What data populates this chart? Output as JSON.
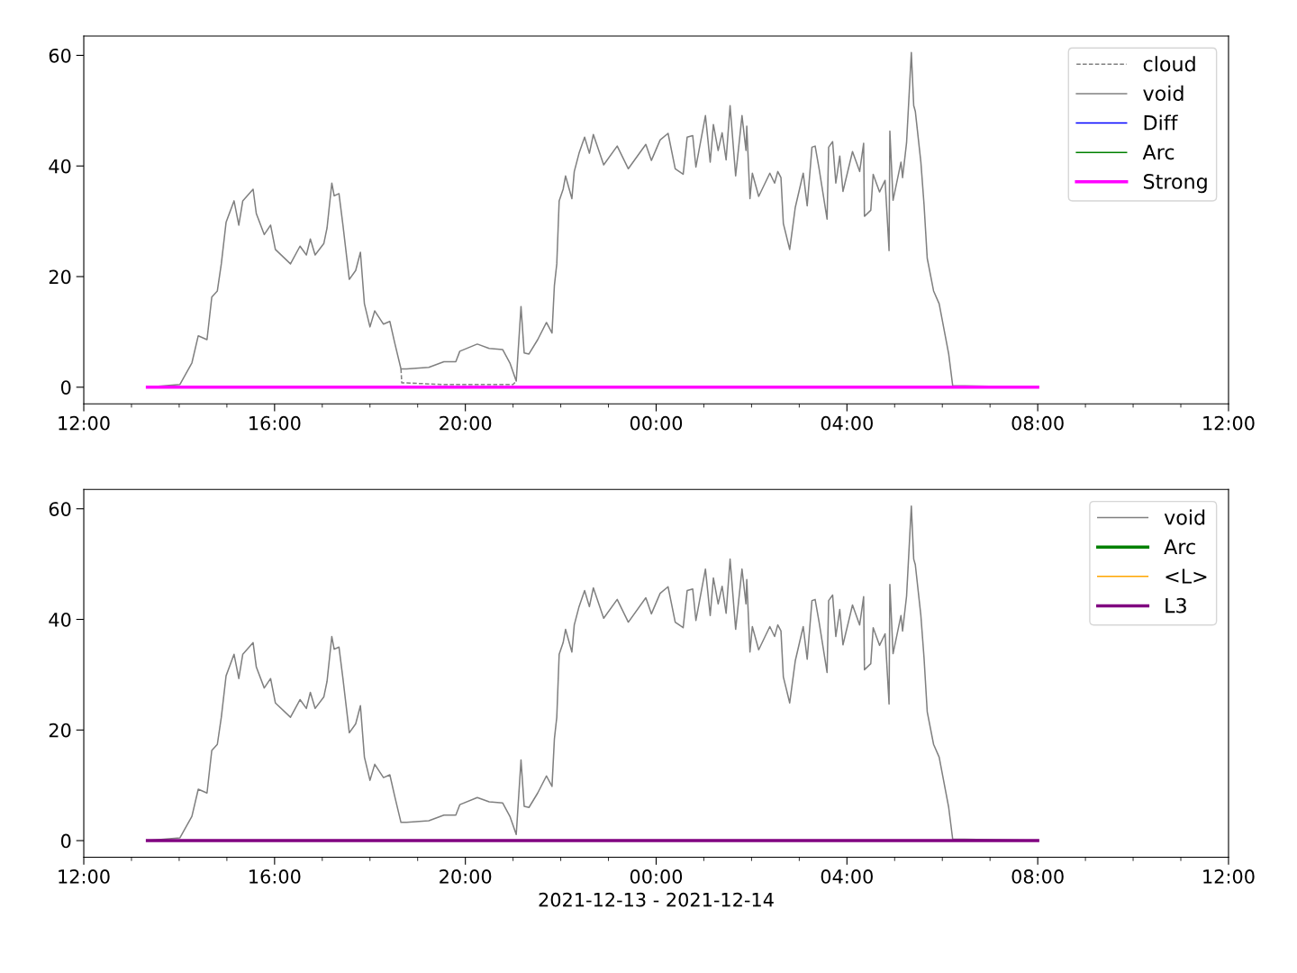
{
  "chart_data": [
    {
      "type": "line",
      "xlim": [
        "2021-12-13T12:00",
        "2021-12-14T12:00"
      ],
      "ylim": [
        -3,
        63.5
      ],
      "yticks": [
        0,
        20,
        40,
        60
      ],
      "xticks": [
        {
          "value": "2021-12-13T12:00",
          "label": "12:00"
        },
        {
          "value": "2021-12-13T16:00",
          "label": "16:00"
        },
        {
          "value": "2021-12-13T20:00",
          "label": "20:00"
        },
        {
          "value": "2021-12-14T00:00",
          "label": "00:00"
        },
        {
          "value": "2021-12-14T04:00",
          "label": "04:00"
        },
        {
          "value": "2021-12-14T08:00",
          "label": "08:00"
        },
        {
          "value": "2021-12-14T12:00",
          "label": "12:00"
        }
      ],
      "legend": "top right",
      "grid": false,
      "series": [
        {
          "name": "cloud",
          "color": "#808080",
          "line_style": "dashed",
          "x": [
            "2021-12-13T18:39",
            "2021-12-13T18:40",
            "2021-12-13T19:30",
            "2021-12-13T20:30",
            "2021-12-13T21:00",
            "2021-12-13T21:04"
          ],
          "values": [
            3.3,
            0.8,
            0.5,
            0.5,
            0.5,
            1.1
          ]
        },
        {
          "name": "void",
          "color": "#808080",
          "line_style": "solid",
          "x": [
            "2021-12-13T13:20",
            "2021-12-13T14:01",
            "2021-12-13T14:16",
            "2021-12-13T14:24",
            "2021-12-13T14:35",
            "2021-12-13T14:41",
            "2021-12-13T14:48",
            "2021-12-13T14:53",
            "2021-12-13T14:59",
            "2021-12-13T15:09",
            "2021-12-13T15:15",
            "2021-12-13T15:20",
            "2021-12-13T15:33",
            "2021-12-13T15:37",
            "2021-12-13T15:47",
            "2021-12-13T15:55",
            "2021-12-13T16:01",
            "2021-12-13T16:20",
            "2021-12-13T16:32",
            "2021-12-13T16:40",
            "2021-12-13T16:45",
            "2021-12-13T16:51",
            "2021-12-13T17:02",
            "2021-12-13T17:06",
            "2021-12-13T17:12",
            "2021-12-13T17:15",
            "2021-12-13T17:21",
            "2021-12-13T17:26",
            "2021-12-13T17:34",
            "2021-12-13T17:42",
            "2021-12-13T17:48",
            "2021-12-13T17:53",
            "2021-12-13T18:00",
            "2021-12-13T18:06",
            "2021-12-13T18:17",
            "2021-12-13T18:25",
            "2021-12-13T18:31",
            "2021-12-13T18:39",
            "2021-12-13T18:46",
            "2021-12-13T19:14",
            "2021-12-13T19:33",
            "2021-12-13T19:48",
            "2021-12-13T19:53",
            "2021-12-13T20:15",
            "2021-12-13T20:30",
            "2021-12-13T20:47",
            "2021-12-13T20:56",
            "2021-12-13T21:04",
            "2021-12-13T21:10",
            "2021-12-13T21:14",
            "2021-12-13T21:20",
            "2021-12-13T21:31",
            "2021-12-13T21:42",
            "2021-12-13T21:49",
            "2021-12-13T21:52",
            "2021-12-13T21:55",
            "2021-12-13T21:58",
            "2021-12-13T22:03",
            "2021-12-13T22:06",
            "2021-12-13T22:14",
            "2021-12-13T22:17",
            "2021-12-13T22:23",
            "2021-12-13T22:30",
            "2021-12-13T22:36",
            "2021-12-13T22:41",
            "2021-12-13T22:54",
            "2021-12-13T23:11",
            "2021-12-13T23:25",
            "2021-12-13T23:47",
            "2021-12-13T23:54",
            "2021-12-14T00:05",
            "2021-12-14T00:15",
            "2021-12-14T00:24",
            "2021-12-14T00:34",
            "2021-12-14T00:39",
            "2021-12-14T00:46",
            "2021-12-14T00:50",
            "2021-12-14T01:02",
            "2021-12-14T01:08",
            "2021-12-14T01:12",
            "2021-12-14T01:18",
            "2021-12-14T01:23",
            "2021-12-14T01:28",
            "2021-12-14T01:33",
            "2021-12-14T01:40",
            "2021-12-14T01:48",
            "2021-12-14T01:53",
            "2021-12-14T01:54",
            "2021-12-14T01:58",
            "2021-12-14T02:01",
            "2021-12-14T02:09",
            "2021-12-14T02:23",
            "2021-12-14T02:29",
            "2021-12-14T02:33",
            "2021-12-14T02:37",
            "2021-12-14T02:40",
            "2021-12-14T02:48",
            "2021-12-14T02:55",
            "2021-12-14T03:05",
            "2021-12-14T03:10",
            "2021-12-14T03:16",
            "2021-12-14T03:20",
            "2021-12-14T03:25",
            "2021-12-14T03:35",
            "2021-12-14T03:37",
            "2021-12-14T03:42",
            "2021-12-14T03:46",
            "2021-12-14T03:51",
            "2021-12-14T03:55",
            "2021-12-14T04:07",
            "2021-12-14T04:16",
            "2021-12-14T04:21",
            "2021-12-14T04:22",
            "2021-12-14T04:30",
            "2021-12-14T04:33",
            "2021-12-14T04:41",
            "2021-12-14T04:48",
            "2021-12-14T04:53",
            "2021-12-14T04:54",
            "2021-12-14T04:58",
            "2021-12-14T05:08",
            "2021-12-14T05:10",
            "2021-12-14T05:15",
            "2021-12-14T05:21",
            "2021-12-14T05:24",
            "2021-12-14T05:26",
            "2021-12-14T05:33",
            "2021-12-14T05:37",
            "2021-12-14T05:41",
            "2021-12-14T05:49",
            "2021-12-14T05:56",
            "2021-12-14T06:08",
            "2021-12-14T06:13",
            "2021-12-14T08:00"
          ],
          "values": [
            0,
            0.5,
            4.4,
            9.3,
            8.6,
            16.3,
            17.4,
            22.3,
            29.8,
            33.7,
            29.3,
            33.7,
            35.8,
            31.4,
            27.6,
            29.3,
            24.9,
            22.3,
            25.5,
            23.9,
            26.8,
            23.9,
            26.0,
            28.8,
            36.9,
            34.6,
            35.0,
            29.3,
            19.5,
            21.1,
            24.4,
            15.1,
            10.9,
            13.8,
            11.4,
            11.9,
            8.1,
            3.3,
            3.3,
            3.6,
            4.6,
            4.6,
            6.5,
            7.8,
            7.0,
            6.8,
            4.4,
            1.1,
            14.6,
            6.2,
            6.0,
            8.6,
            11.7,
            9.8,
            18.4,
            22.3,
            33.7,
            35.8,
            38.2,
            34.1,
            39.0,
            42.3,
            45.2,
            42.3,
            45.7,
            40.2,
            43.6,
            39.5,
            43.9,
            41.0,
            44.7,
            45.9,
            39.5,
            38.5,
            45.2,
            45.5,
            39.8,
            49.1,
            40.7,
            47.5,
            42.8,
            46.0,
            41.1,
            50.9,
            38.2,
            49.1,
            42.8,
            47.2,
            34.1,
            38.7,
            34.5,
            38.7,
            36.9,
            39.0,
            37.9,
            29.6,
            24.9,
            32.5,
            38.7,
            32.8,
            43.4,
            43.6,
            39.5,
            30.4,
            43.4,
            44.4,
            36.9,
            41.8,
            35.4,
            42.6,
            39.0,
            44.1,
            30.9,
            32.0,
            38.5,
            35.3,
            37.4,
            24.7,
            46.3,
            33.8,
            40.7,
            37.9,
            44.2,
            60.5,
            50.9,
            49.9,
            40.7,
            33.0,
            23.3,
            17.4,
            15.1,
            6.0,
            0.3,
            0
          ]
        },
        {
          "name": "Diff",
          "color": "#0000ff",
          "line_style": "solid"
        },
        {
          "name": "Arc",
          "color": "#008000",
          "line_style": "solid"
        },
        {
          "name": "Strong",
          "color": "#ff00ff",
          "line_style": "solid",
          "x": [
            "2021-12-13T13:20",
            "2021-12-14T08:00"
          ],
          "values": [
            0,
            0
          ]
        }
      ]
    },
    {
      "type": "line",
      "xlim": [
        "2021-12-13T12:00",
        "2021-12-14T12:00"
      ],
      "ylim": [
        -3,
        63.5
      ],
      "yticks": [
        0,
        20,
        40,
        60
      ],
      "xticks": [
        {
          "value": "2021-12-13T12:00",
          "label": "12:00"
        },
        {
          "value": "2021-12-13T16:00",
          "label": "16:00"
        },
        {
          "value": "2021-12-13T20:00",
          "label": "20:00"
        },
        {
          "value": "2021-12-14T00:00",
          "label": "00:00"
        },
        {
          "value": "2021-12-14T04:00",
          "label": "04:00"
        },
        {
          "value": "2021-12-14T08:00",
          "label": "08:00"
        },
        {
          "value": "2021-12-14T12:00",
          "label": "12:00"
        }
      ],
      "xlabel": "2021-12-13 - 2021-12-14",
      "legend": "top right",
      "grid": false,
      "series": [
        {
          "name": "void",
          "color": "#808080",
          "line_style": "solid",
          "x": [
            "2021-12-13T13:20",
            "2021-12-13T14:01",
            "2021-12-13T14:16",
            "2021-12-13T14:24",
            "2021-12-13T14:35",
            "2021-12-13T14:41",
            "2021-12-13T14:48",
            "2021-12-13T14:53",
            "2021-12-13T14:59",
            "2021-12-13T15:09",
            "2021-12-13T15:15",
            "2021-12-13T15:20",
            "2021-12-13T15:33",
            "2021-12-13T15:37",
            "2021-12-13T15:47",
            "2021-12-13T15:55",
            "2021-12-13T16:01",
            "2021-12-13T16:20",
            "2021-12-13T16:32",
            "2021-12-13T16:40",
            "2021-12-13T16:45",
            "2021-12-13T16:51",
            "2021-12-13T17:02",
            "2021-12-13T17:06",
            "2021-12-13T17:12",
            "2021-12-13T17:15",
            "2021-12-13T17:21",
            "2021-12-13T17:26",
            "2021-12-13T17:34",
            "2021-12-13T17:42",
            "2021-12-13T17:48",
            "2021-12-13T17:53",
            "2021-12-13T18:00",
            "2021-12-13T18:06",
            "2021-12-13T18:17",
            "2021-12-13T18:25",
            "2021-12-13T18:31",
            "2021-12-13T18:39",
            "2021-12-13T18:46",
            "2021-12-13T19:14",
            "2021-12-13T19:33",
            "2021-12-13T19:48",
            "2021-12-13T19:53",
            "2021-12-13T20:15",
            "2021-12-13T20:30",
            "2021-12-13T20:47",
            "2021-12-13T20:56",
            "2021-12-13T21:04",
            "2021-12-13T21:10",
            "2021-12-13T21:14",
            "2021-12-13T21:20",
            "2021-12-13T21:31",
            "2021-12-13T21:42",
            "2021-12-13T21:49",
            "2021-12-13T21:52",
            "2021-12-13T21:55",
            "2021-12-13T21:58",
            "2021-12-13T22:03",
            "2021-12-13T22:06",
            "2021-12-13T22:14",
            "2021-12-13T22:17",
            "2021-12-13T22:23",
            "2021-12-13T22:30",
            "2021-12-13T22:36",
            "2021-12-13T22:41",
            "2021-12-13T22:54",
            "2021-12-13T23:11",
            "2021-12-13T23:25",
            "2021-12-13T23:47",
            "2021-12-13T23:54",
            "2021-12-14T00:05",
            "2021-12-14T00:15",
            "2021-12-14T00:24",
            "2021-12-14T00:34",
            "2021-12-14T00:39",
            "2021-12-14T00:46",
            "2021-12-14T00:50",
            "2021-12-14T01:02",
            "2021-12-14T01:08",
            "2021-12-14T01:12",
            "2021-12-14T01:18",
            "2021-12-14T01:23",
            "2021-12-14T01:28",
            "2021-12-14T01:33",
            "2021-12-14T01:40",
            "2021-12-14T01:48",
            "2021-12-14T01:53",
            "2021-12-14T01:54",
            "2021-12-14T01:58",
            "2021-12-14T02:01",
            "2021-12-14T02:09",
            "2021-12-14T02:23",
            "2021-12-14T02:29",
            "2021-12-14T02:33",
            "2021-12-14T02:37",
            "2021-12-14T02:40",
            "2021-12-14T02:48",
            "2021-12-14T02:55",
            "2021-12-14T03:05",
            "2021-12-14T03:10",
            "2021-12-14T03:16",
            "2021-12-14T03:20",
            "2021-12-14T03:25",
            "2021-12-14T03:35",
            "2021-12-14T03:37",
            "2021-12-14T03:42",
            "2021-12-14T03:46",
            "2021-12-14T03:51",
            "2021-12-14T03:55",
            "2021-12-14T04:07",
            "2021-12-14T04:16",
            "2021-12-14T04:21",
            "2021-12-14T04:22",
            "2021-12-14T04:30",
            "2021-12-14T04:33",
            "2021-12-14T04:41",
            "2021-12-14T04:48",
            "2021-12-14T04:53",
            "2021-12-14T04:54",
            "2021-12-14T04:58",
            "2021-12-14T05:08",
            "2021-12-14T05:10",
            "2021-12-14T05:15",
            "2021-12-14T05:21",
            "2021-12-14T05:24",
            "2021-12-14T05:26",
            "2021-12-14T05:33",
            "2021-12-14T05:37",
            "2021-12-14T05:41",
            "2021-12-14T05:49",
            "2021-12-14T05:56",
            "2021-12-14T06:08",
            "2021-12-14T06:13",
            "2021-12-14T08:00"
          ],
          "values": [
            0,
            0.5,
            4.4,
            9.3,
            8.6,
            16.3,
            17.4,
            22.3,
            29.8,
            33.7,
            29.3,
            33.7,
            35.8,
            31.4,
            27.6,
            29.3,
            24.9,
            22.3,
            25.5,
            23.9,
            26.8,
            23.9,
            26.0,
            28.8,
            36.9,
            34.6,
            35.0,
            29.3,
            19.5,
            21.1,
            24.4,
            15.1,
            10.9,
            13.8,
            11.4,
            11.9,
            8.1,
            3.3,
            3.3,
            3.6,
            4.6,
            4.6,
            6.5,
            7.8,
            7.0,
            6.8,
            4.4,
            1.1,
            14.6,
            6.2,
            6.0,
            8.6,
            11.7,
            9.8,
            18.4,
            22.3,
            33.7,
            35.8,
            38.2,
            34.1,
            39.0,
            42.3,
            45.2,
            42.3,
            45.7,
            40.2,
            43.6,
            39.5,
            43.9,
            41.0,
            44.7,
            45.9,
            39.5,
            38.5,
            45.2,
            45.5,
            39.8,
            49.1,
            40.7,
            47.5,
            42.8,
            46.0,
            41.1,
            50.9,
            38.2,
            49.1,
            42.8,
            47.2,
            34.1,
            38.7,
            34.5,
            38.7,
            36.9,
            39.0,
            37.9,
            29.6,
            24.9,
            32.5,
            38.7,
            32.8,
            43.4,
            43.6,
            39.5,
            30.4,
            43.4,
            44.4,
            36.9,
            41.8,
            35.4,
            42.6,
            39.0,
            44.1,
            30.9,
            32.0,
            38.5,
            35.3,
            37.4,
            24.7,
            46.3,
            33.8,
            40.7,
            37.9,
            44.2,
            60.5,
            50.9,
            49.9,
            40.7,
            33.0,
            23.3,
            17.4,
            15.1,
            6.0,
            0.3,
            0
          ]
        },
        {
          "name": "Arc",
          "color": "#008000",
          "line_style": "solid"
        },
        {
          "name": "<L>",
          "color": "#ffa500",
          "line_style": "solid"
        },
        {
          "name": "L3",
          "color": "#800080",
          "line_style": "solid",
          "x": [
            "2021-12-13T13:20",
            "2021-12-14T08:00"
          ],
          "values": [
            0,
            0
          ]
        }
      ]
    }
  ]
}
